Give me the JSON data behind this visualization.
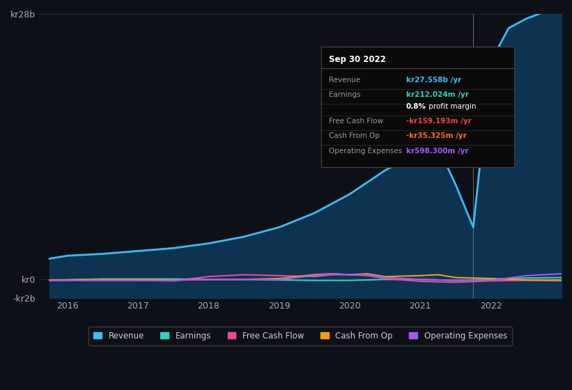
{
  "bg_color": "#0d1117",
  "plot_bg_color": "#0d1117",
  "grid_color": "#1e2a3a",
  "title_box": {
    "date": "Sep 30 2022",
    "rows": [
      {
        "label": "Revenue",
        "value": "kr27.558b /yr",
        "value_color": "#38bdf8"
      },
      {
        "label": "Earnings",
        "value": "kr212.024m /yr",
        "value_color": "#2dd4bf"
      },
      {
        "label": "",
        "value": "0.8% profit margin",
        "value_color": "#ffffff"
      },
      {
        "label": "Free Cash Flow",
        "value": "-kr159.193m /yr",
        "value_color": "#ef4444"
      },
      {
        "label": "Cash From Op",
        "value": "-kr35.325m /yr",
        "value_color": "#f97316"
      },
      {
        "label": "Operating Expenses",
        "value": "kr598.300m /yr",
        "value_color": "#a855f7"
      }
    ]
  },
  "y_max": 28,
  "y_min": -2,
  "x_min": 2015.6,
  "x_max": 2023.0,
  "revenue": {
    "x": [
      2015.75,
      2016.0,
      2016.5,
      2017.0,
      2017.5,
      2018.0,
      2018.5,
      2019.0,
      2019.5,
      2020.0,
      2020.5,
      2021.0,
      2021.25,
      2021.5,
      2021.75,
      2022.0,
      2022.25,
      2022.5,
      2022.75,
      2023.0
    ],
    "y": [
      2.2,
      2.5,
      2.7,
      3.0,
      3.3,
      3.8,
      4.5,
      5.5,
      7.0,
      9.0,
      11.5,
      13.5,
      14.0,
      10.0,
      5.5,
      23.0,
      26.5,
      27.5,
      28.2,
      28.5
    ],
    "color": "#38bdf8",
    "fill_color": "#0d3a5c",
    "linewidth": 2.0
  },
  "earnings": {
    "x": [
      2015.75,
      2016.5,
      2017.0,
      2017.5,
      2018.0,
      2018.5,
      2019.0,
      2019.5,
      2020.0,
      2020.5,
      2021.0,
      2021.5,
      2022.0,
      2022.5,
      2023.0
    ],
    "y": [
      -0.1,
      0.05,
      0.05,
      0.05,
      0.0,
      0.0,
      -0.05,
      -0.1,
      -0.1,
      0.0,
      0.0,
      -0.1,
      0.0,
      0.15,
      0.2
    ],
    "color": "#2dd4bf",
    "linewidth": 1.5
  },
  "free_cash_flow": {
    "x": [
      2015.75,
      2016.5,
      2017.0,
      2017.5,
      2018.0,
      2018.25,
      2018.5,
      2019.0,
      2019.5,
      2019.75,
      2020.0,
      2020.25,
      2020.5,
      2021.0,
      2021.5,
      2022.0,
      2022.5,
      2023.0
    ],
    "y": [
      -0.1,
      -0.1,
      -0.1,
      -0.15,
      0.3,
      0.4,
      0.5,
      0.4,
      0.3,
      0.5,
      0.5,
      0.4,
      0.1,
      -0.2,
      -0.3,
      -0.15,
      -0.1,
      -0.15
    ],
    "color": "#ec4899",
    "linewidth": 1.5
  },
  "cash_from_op": {
    "x": [
      2015.75,
      2016.5,
      2017.0,
      2017.5,
      2018.0,
      2018.5,
      2019.0,
      2019.25,
      2019.5,
      2019.75,
      2020.0,
      2020.25,
      2020.5,
      2021.0,
      2021.25,
      2021.5,
      2022.0,
      2022.5,
      2023.0
    ],
    "y": [
      -0.05,
      0.0,
      0.0,
      -0.05,
      0.0,
      0.0,
      0.1,
      0.3,
      0.5,
      0.6,
      0.5,
      0.6,
      0.3,
      0.4,
      0.5,
      0.2,
      0.1,
      -0.05,
      -0.05
    ],
    "color": "#f59e0b",
    "linewidth": 1.5
  },
  "operating_expenses": {
    "x": [
      2015.75,
      2016.5,
      2017.0,
      2017.5,
      2018.0,
      2018.5,
      2019.0,
      2019.5,
      2019.75,
      2020.0,
      2020.25,
      2020.5,
      2021.0,
      2021.5,
      2022.0,
      2022.5,
      2023.0
    ],
    "y": [
      -0.1,
      -0.1,
      -0.1,
      -0.1,
      0.0,
      0.0,
      0.0,
      0.4,
      0.6,
      0.5,
      0.5,
      0.2,
      0.0,
      -0.1,
      -0.1,
      0.4,
      0.6
    ],
    "color": "#a855f7",
    "linewidth": 1.5
  },
  "highlight_x": 2021.75,
  "legend": [
    {
      "label": "Revenue",
      "color": "#38bdf8"
    },
    {
      "label": "Earnings",
      "color": "#2dd4bf"
    },
    {
      "label": "Free Cash Flow",
      "color": "#ec4899"
    },
    {
      "label": "Cash From Op",
      "color": "#f59e0b"
    },
    {
      "label": "Operating Expenses",
      "color": "#a855f7"
    }
  ]
}
